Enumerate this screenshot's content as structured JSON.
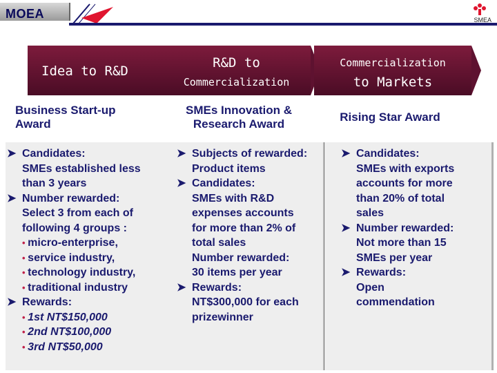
{
  "header": {
    "brand": "MOEA",
    "logo_caption": "SMEA"
  },
  "columns": [
    {
      "title_line1": "Idea to R&D",
      "title_line2": "",
      "award_line1": "Business Start-up",
      "award_line2": "Award",
      "items": [
        {
          "kind": "head",
          "text": "Candidates:"
        },
        {
          "kind": "sub",
          "text": "SMEs established less"
        },
        {
          "kind": "sub",
          "text": "than 3 years"
        },
        {
          "kind": "head",
          "text": "Number rewarded:"
        },
        {
          "kind": "sub",
          "text": "Select 3 from each of"
        },
        {
          "kind": "sub",
          "text": "following 4 groups :"
        },
        {
          "kind": "dot",
          "text": "micro-enterprise,"
        },
        {
          "kind": "dot",
          "text": "service industry,"
        },
        {
          "kind": "dot",
          "text": "technology industry,"
        },
        {
          "kind": "dot",
          "text": "traditional industry"
        },
        {
          "kind": "head",
          "text": "Rewards:"
        },
        {
          "kind": "dot",
          "text": "1st NT$150,000",
          "italic": true
        },
        {
          "kind": "dot",
          "text": "2nd NT$100,000",
          "italic": true
        },
        {
          "kind": "dot",
          "text": "3rd NT$50,000",
          "italic": true
        }
      ]
    },
    {
      "title_line1": "R&D to",
      "title_line2": "Commercialization",
      "award_line1": "SMEs Innovation  &",
      "award_line2": "Research Award",
      "items": [
        {
          "kind": "head",
          "text": "Subjects of rewarded:"
        },
        {
          "kind": "sub",
          "text": "Product  items"
        },
        {
          "kind": "head",
          "text": "Candidates:"
        },
        {
          "kind": "sub",
          "text": "SMEs with R&D"
        },
        {
          "kind": "sub",
          "text": "expenses accounts"
        },
        {
          "kind": "sub",
          "text": "for more than 2% of"
        },
        {
          "kind": "sub",
          "text": "total sales"
        },
        {
          "kind": "sub",
          "text": "Number rewarded:"
        },
        {
          "kind": "sub",
          "text": " 30 items per year"
        },
        {
          "kind": "head",
          "text": "Rewards:"
        },
        {
          "kind": "sub",
          "text": "NT$300,000 for each"
        },
        {
          "kind": "sub",
          "text": "prizewinner"
        }
      ]
    },
    {
      "title_line1": "Commercialization",
      "title_line2": "to Markets",
      "award_line1": "Rising Star Award",
      "award_line2": "",
      "items": [
        {
          "kind": "head",
          "text": "Candidates:"
        },
        {
          "kind": "sub",
          "text": "SMEs with exports"
        },
        {
          "kind": "sub",
          "text": "accounts for more"
        },
        {
          "kind": "sub",
          "text": "than  20% of total"
        },
        {
          "kind": "sub",
          "text": "sales"
        },
        {
          "kind": "head",
          "text": "Number rewarded:"
        },
        {
          "kind": "sub",
          "text": "Not more than 15"
        },
        {
          "kind": "sub",
          "text": "SMEs per year"
        },
        {
          "kind": "head",
          "text": "Rewards:"
        },
        {
          "kind": "sub",
          "text": "Open"
        },
        {
          "kind": "sub",
          "text": "commendation"
        }
      ]
    }
  ],
  "colors": {
    "header_bg": "#6e1838",
    "text": "#1a1a6e",
    "panel_bg": "#eeeeee",
    "dot": "#c0214a"
  },
  "icons": {
    "arrow_bullet": "right-arrow-bullet-icon",
    "logo": "smea-flower-logo-icon",
    "swoosh": "red-swoosh-icon"
  }
}
